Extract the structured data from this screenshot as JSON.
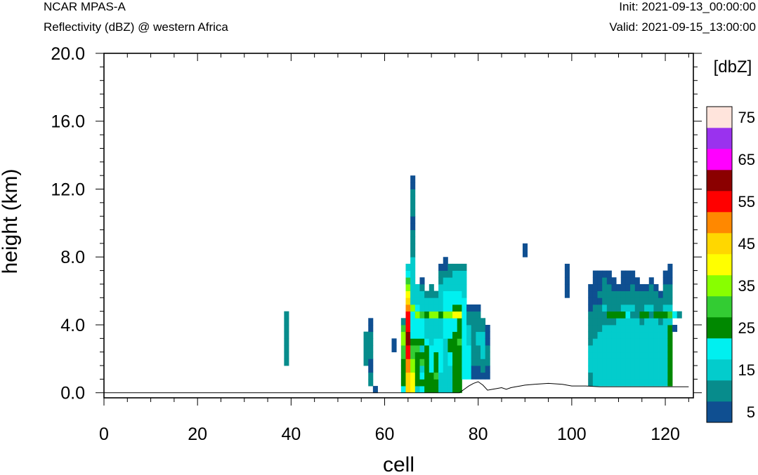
{
  "header": {
    "model": "NCAR MPAS-A",
    "field": "Reflectivity (dBZ) @ western Africa",
    "init": "Init: 2021-09-13_00:00:00",
    "valid": "Valid: 2021-09-15_13:00:00"
  },
  "chart_data": {
    "type": "heatmap",
    "title": "Reflectivity (dBZ) @ western Africa",
    "xlabel": "cell",
    "ylabel": "height (km)",
    "xlim": [
      0,
      126
    ],
    "ylim": [
      -0.3,
      20
    ],
    "x_ticks": [
      "0",
      "20",
      "40",
      "60",
      "80",
      "100",
      "120"
    ],
    "y_ticks": [
      "0.0",
      "4.0",
      "8.0",
      "12.0",
      "16.0",
      "20.0"
    ],
    "colorbar": {
      "title": "[dbZ]",
      "labels": [
        "5",
        "15",
        "25",
        "35",
        "45",
        "55",
        "65",
        "75"
      ],
      "colors": [
        "#0f4f91",
        "#078c8c",
        "#03cccc",
        "#00f0f0",
        "#008800",
        "#33cc33",
        "#88ff00",
        "#ffff00",
        "#ffd700",
        "#ff8800",
        "#ff0000",
        "#8b0000",
        "#ff00ff",
        "#9a32ee",
        "#ffe4dc"
      ]
    },
    "cell_size": {
      "dx": 1,
      "dz": 0.4
    },
    "columns": [
      {
        "x": 39,
        "from": 1.6,
        "to": 4.9,
        "levels": [
          1,
          1,
          1,
          1,
          1,
          1,
          1,
          1
        ]
      },
      {
        "x": 56,
        "from": 1.6,
        "to": 3.6,
        "levels": [
          1,
          1,
          1,
          1,
          1
        ]
      },
      {
        "x": 57,
        "from": 0.4,
        "to": 4.4,
        "levels": [
          1,
          1,
          0,
          0,
          1,
          1,
          1,
          1,
          0,
          0
        ]
      },
      {
        "x": 58,
        "from": 0.0,
        "to": 0.4,
        "levels": [
          0
        ]
      },
      {
        "x": 62,
        "from": 2.4,
        "to": 3.0,
        "levels": [
          0,
          0
        ]
      },
      {
        "x": 64,
        "from": 0.0,
        "to": 4.4,
        "levels": [
          3,
          4,
          4,
          4,
          4,
          5,
          5,
          6,
          6,
          5,
          1
        ]
      },
      {
        "x": 65,
        "from": 0.0,
        "to": 7.6,
        "levels": [
          8,
          8,
          8,
          9,
          9,
          10,
          10,
          11,
          11,
          10,
          10,
          10,
          9,
          8,
          7,
          6,
          5,
          3,
          2
        ]
      },
      {
        "x": 66,
        "from": 0.0,
        "to": 12.6,
        "levels": [
          7,
          7,
          7,
          6,
          6,
          5,
          5,
          4,
          3,
          3,
          3,
          3,
          6,
          2,
          2,
          2,
          2,
          2,
          2,
          2,
          1,
          1,
          1,
          1,
          0,
          0,
          1,
          1,
          1,
          1,
          0,
          0
        ]
      },
      {
        "x": 67,
        "from": 0.0,
        "to": 6.4,
        "levels": [
          2,
          4,
          4,
          4,
          4,
          4,
          5,
          4,
          3,
          3,
          3,
          6,
          3,
          2,
          2,
          2
        ]
      },
      {
        "x": 68,
        "from": 0.0,
        "to": 6.8,
        "levels": [
          3,
          4,
          3,
          2,
          5,
          4,
          2,
          4,
          3,
          3,
          3,
          5,
          2,
          2,
          2,
          1,
          0
        ]
      },
      {
        "x": 69,
        "from": 0.0,
        "to": 6.0,
        "levels": [
          4,
          4,
          4,
          4,
          4,
          4,
          4,
          3,
          2,
          2,
          2,
          4,
          2,
          2,
          1
        ]
      },
      {
        "x": 70,
        "from": 0.0,
        "to": 6.4,
        "levels": [
          4,
          4,
          4,
          3,
          3,
          3,
          3,
          2,
          2,
          2,
          2,
          6,
          2,
          2,
          1,
          1
        ]
      },
      {
        "x": 71,
        "from": 0.0,
        "to": 6.0,
        "levels": [
          4,
          4,
          5,
          4,
          4,
          4,
          3,
          3,
          2,
          2,
          2,
          6,
          2,
          2,
          1
        ]
      },
      {
        "x": 72,
        "from": 0.0,
        "to": 7.6,
        "levels": [
          2,
          2,
          2,
          3,
          3,
          3,
          3,
          3,
          2,
          2,
          2,
          4,
          2,
          2,
          2,
          2,
          1,
          1,
          0
        ]
      },
      {
        "x": 73,
        "from": 0.0,
        "to": 8.0,
        "levels": [
          2,
          2,
          2,
          2,
          2,
          2,
          2,
          2,
          3,
          3,
          3,
          6,
          3,
          3,
          3,
          2,
          2,
          1,
          0,
          0
        ]
      },
      {
        "x": 74,
        "from": 0.0,
        "to": 7.6,
        "levels": [
          2,
          2,
          2,
          2,
          3,
          3,
          4,
          4,
          3,
          3,
          3,
          6,
          3,
          3,
          3,
          2,
          2,
          1,
          1
        ]
      },
      {
        "x": 75,
        "from": 0.0,
        "to": 7.6,
        "levels": [
          4,
          4,
          4,
          4,
          4,
          4,
          4,
          4,
          4,
          3,
          3,
          7,
          4,
          3,
          3,
          2,
          2,
          2,
          1
        ]
      },
      {
        "x": 76,
        "from": 0.0,
        "to": 7.6,
        "levels": [
          4,
          4,
          4,
          4,
          4,
          4,
          4,
          5,
          4,
          4,
          4,
          7,
          4,
          3,
          3,
          2,
          2,
          2,
          1
        ]
      },
      {
        "x": 77,
        "from": 0.8,
        "to": 7.6,
        "levels": [
          3,
          3,
          3,
          3,
          3,
          3,
          3,
          3,
          3,
          3,
          3,
          3,
          2,
          2,
          2,
          2,
          1
        ]
      },
      {
        "x": 78,
        "from": 0.8,
        "to": 5.2,
        "levels": [
          3,
          3,
          3,
          3,
          3,
          2,
          2,
          2,
          1,
          1,
          0
        ]
      },
      {
        "x": 79,
        "from": 0.8,
        "to": 5.2,
        "levels": [
          0,
          0,
          1,
          1,
          1,
          1,
          1,
          1,
          1,
          1,
          0
        ]
      },
      {
        "x": 80,
        "from": 0.8,
        "to": 5.2,
        "levels": [
          0,
          0,
          1,
          1,
          1,
          2,
          2,
          1,
          1,
          1,
          0
        ]
      },
      {
        "x": 81,
        "from": 0.8,
        "to": 4.4,
        "levels": [
          0,
          1,
          1,
          2,
          2,
          2,
          2,
          1,
          1
        ]
      },
      {
        "x": 82,
        "from": 0.8,
        "to": 4.0,
        "levels": [
          0,
          0,
          1,
          1,
          1,
          0,
          0,
          0
        ]
      },
      {
        "x": 90,
        "from": 8.0,
        "to": 8.6,
        "levels": [
          0,
          0
        ]
      },
      {
        "x": 99,
        "from": 5.6,
        "to": 7.6,
        "levels": [
          0,
          0,
          0,
          0,
          0
        ]
      },
      {
        "x": 104,
        "from": 0.4,
        "to": 6.4,
        "levels": [
          1,
          1,
          2,
          2,
          2,
          2,
          1,
          1,
          1,
          1,
          1,
          0,
          0,
          0,
          0
        ]
      },
      {
        "x": 105,
        "from": 0.4,
        "to": 7.2,
        "levels": [
          2,
          2,
          2,
          2,
          2,
          2,
          2,
          1,
          1,
          1,
          1,
          1,
          0,
          0,
          0,
          0,
          0
        ]
      },
      {
        "x": 106,
        "from": 0.4,
        "to": 7.2,
        "levels": [
          2,
          2,
          2,
          2,
          2,
          2,
          2,
          2,
          1,
          1,
          1,
          1,
          0,
          1,
          0,
          0,
          0
        ]
      },
      {
        "x": 107,
        "from": 0.4,
        "to": 7.2,
        "levels": [
          2,
          2,
          2,
          2,
          2,
          2,
          2,
          2,
          2,
          1,
          1,
          2,
          1,
          1,
          1,
          1,
          0
        ]
      },
      {
        "x": 108,
        "from": 0.4,
        "to": 7.2,
        "levels": [
          2,
          2,
          2,
          2,
          2,
          2,
          2,
          2,
          2,
          1,
          4,
          1,
          1,
          1,
          1,
          0,
          0
        ]
      },
      {
        "x": 109,
        "from": 0.4,
        "to": 6.8,
        "levels": [
          2,
          2,
          2,
          2,
          2,
          2,
          2,
          2,
          2,
          1,
          4,
          1,
          1,
          1,
          0,
          0
        ]
      },
      {
        "x": 110,
        "from": 0.4,
        "to": 6.4,
        "levels": [
          2,
          2,
          2,
          2,
          2,
          2,
          2,
          2,
          2,
          2,
          4,
          1,
          1,
          1,
          0
        ]
      },
      {
        "x": 111,
        "from": 0.4,
        "to": 7.2,
        "levels": [
          2,
          2,
          2,
          2,
          2,
          2,
          2,
          2,
          2,
          2,
          4,
          2,
          1,
          1,
          0,
          0,
          0
        ]
      },
      {
        "x": 112,
        "from": 0.4,
        "to": 7.2,
        "levels": [
          2,
          2,
          2,
          2,
          2,
          2,
          2,
          2,
          2,
          2,
          3,
          2,
          1,
          1,
          0,
          0,
          0
        ]
      },
      {
        "x": 113,
        "from": 0.4,
        "to": 7.2,
        "levels": [
          2,
          2,
          2,
          2,
          2,
          2,
          2,
          2,
          2,
          2,
          1,
          2,
          1,
          1,
          1,
          0,
          0
        ]
      },
      {
        "x": 114,
        "from": 0.4,
        "to": 6.8,
        "levels": [
          2,
          2,
          2,
          2,
          2,
          2,
          2,
          2,
          2,
          2,
          1,
          1,
          1,
          1,
          0,
          0
        ]
      },
      {
        "x": 115,
        "from": 0.4,
        "to": 6.4,
        "levels": [
          2,
          2,
          2,
          2,
          2,
          2,
          2,
          2,
          2,
          1,
          4,
          1,
          1,
          1,
          0
        ]
      },
      {
        "x": 116,
        "from": 0.4,
        "to": 6.4,
        "levels": [
          2,
          2,
          2,
          2,
          2,
          2,
          2,
          2,
          2,
          2,
          4,
          2,
          1,
          1,
          0
        ]
      },
      {
        "x": 117,
        "from": 0.4,
        "to": 6.8,
        "levels": [
          2,
          2,
          2,
          2,
          2,
          2,
          2,
          2,
          2,
          2,
          1,
          2,
          1,
          1,
          1,
          0
        ]
      },
      {
        "x": 118,
        "from": 0.4,
        "to": 6.4,
        "levels": [
          2,
          2,
          2,
          2,
          2,
          2,
          2,
          2,
          2,
          2,
          4,
          1,
          1,
          1,
          0
        ]
      },
      {
        "x": 119,
        "from": 0.4,
        "to": 6.0,
        "levels": [
          2,
          2,
          2,
          2,
          2,
          2,
          2,
          2,
          2,
          1,
          4,
          1,
          1,
          0
        ]
      },
      {
        "x": 120,
        "from": 0.4,
        "to": 7.2,
        "levels": [
          2,
          2,
          2,
          2,
          2,
          2,
          2,
          2,
          2,
          2,
          4,
          2,
          1,
          1,
          1,
          0,
          0
        ]
      },
      {
        "x": 121,
        "from": 0.4,
        "to": 7.6,
        "levels": [
          4,
          4,
          4,
          4,
          4,
          4,
          4,
          4,
          4,
          2,
          5,
          2,
          1,
          1,
          1,
          0,
          0,
          0
        ]
      },
      {
        "x": 122,
        "from": 3.6,
        "to": 4.0,
        "levels": [
          0
        ]
      },
      {
        "x": 122,
        "from": 4.4,
        "to": 4.8,
        "levels": [
          3
        ]
      },
      {
        "x": 123,
        "from": 4.4,
        "to": 4.8,
        "levels": [
          1
        ]
      }
    ],
    "terrain": {
      "x": [
        0,
        76,
        77,
        78,
        79,
        80,
        81,
        82,
        83,
        84,
        85,
        86,
        87,
        88,
        89,
        90,
        92,
        95,
        98,
        100,
        103,
        106,
        110,
        114,
        118,
        120,
        122,
        125
      ],
      "y": [
        0.0,
        0.0,
        0.2,
        0.4,
        0.55,
        0.65,
        0.45,
        0.15,
        0.2,
        0.25,
        0.3,
        0.2,
        0.3,
        0.35,
        0.4,
        0.45,
        0.5,
        0.55,
        0.5,
        0.4,
        0.4,
        0.35,
        0.35,
        0.35,
        0.35,
        0.35,
        0.35,
        0.35
      ]
    }
  }
}
